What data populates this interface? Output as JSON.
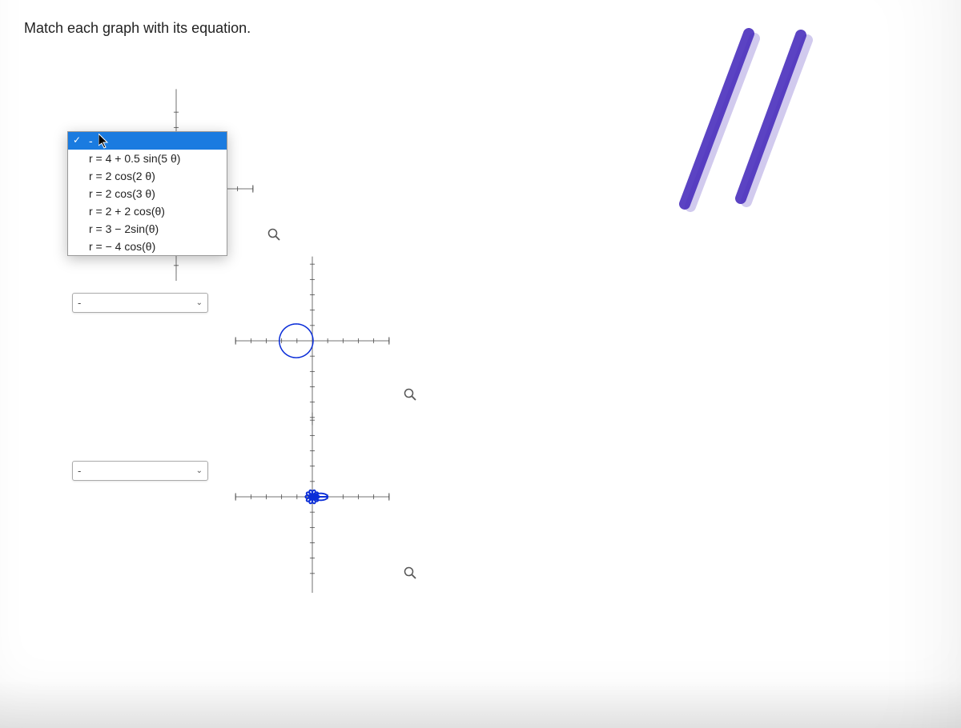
{
  "question": "Match each graph with its equation.",
  "dropdown": {
    "placeholder": "-",
    "selected_index": 0,
    "options": [
      "-",
      "r = 4 + 0.5 sin(5 θ)",
      "r = 2 cos(2 θ)",
      "r = 2 cos(3 θ)",
      "r = 2 + 2 cos(θ)",
      "r = 3 − 2sin(θ)",
      "r = − 4 cos(θ)"
    ],
    "selected_bg": "#1a7be0",
    "selected_fg": "#ffffff",
    "item_fg": "#222222"
  },
  "selectors": [
    {
      "value": "-"
    },
    {
      "value": "-"
    },
    {
      "value": "-"
    }
  ],
  "graphs": {
    "axis_color": "#444444",
    "curve_color": "#0b2ed8",
    "tick_len": 4,
    "range": 5,
    "charts": [
      {
        "type": "polar",
        "formula": "r = 2 cos(2θ)",
        "xlim": [
          -5,
          5
        ],
        "ylim": [
          -5,
          5
        ]
      },
      {
        "type": "polar",
        "formula": "cardioid-left",
        "xlim": [
          -5,
          5
        ],
        "ylim": [
          -5,
          5
        ]
      },
      {
        "type": "polar",
        "formula": "rose-5petal-small",
        "xlim": [
          -5,
          5
        ],
        "ylim": [
          -5,
          5
        ]
      }
    ]
  },
  "stylus": {
    "color": "#4a2fbd",
    "stroke_width": 14
  }
}
